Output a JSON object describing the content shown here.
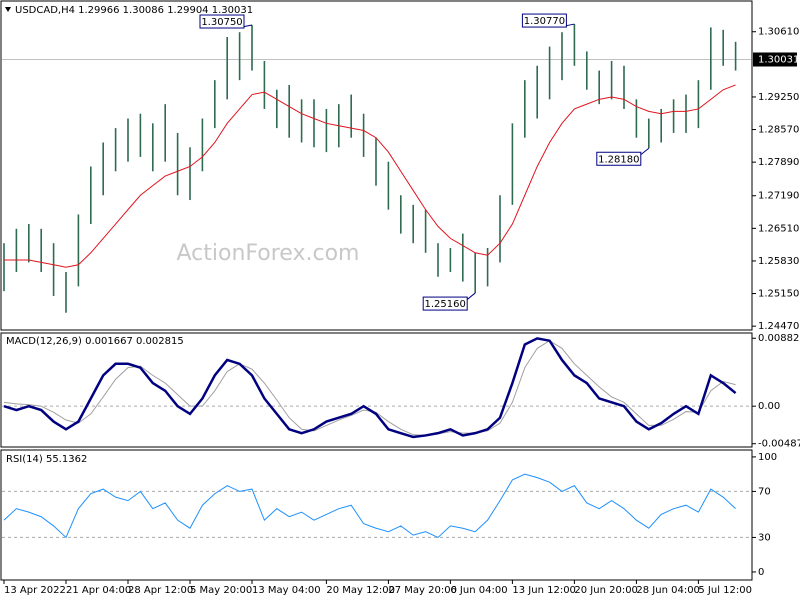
{
  "chart_data": [
    {
      "type": "ohlc",
      "title": "USDCAD,H4 1.29966 1.30086 1.29904 1.30031",
      "watermark": "ActionForex.com",
      "categories": [
        "13 Apr 2022",
        null,
        null,
        null,
        null,
        "21 Apr 04:00",
        null,
        null,
        null,
        null,
        "28 Apr 12:00",
        null,
        null,
        null,
        null,
        "5 May 20:00",
        null,
        null,
        null,
        null,
        "13 May 04:00",
        null,
        null,
        null,
        null,
        null,
        "20 May 12:00",
        null,
        null,
        null,
        null,
        "27 May 20:00",
        null,
        null,
        null,
        null,
        "6 Jun 04:00",
        null,
        null,
        null,
        null,
        "13 Jun 12:00",
        null,
        null,
        null,
        null,
        "20 Jun 20:00",
        null,
        null,
        null,
        null,
        "28 Jun 04:00",
        null,
        null,
        null,
        null,
        "5 Jul 12:00",
        null,
        null,
        null
      ],
      "high": [
        1.262,
        1.265,
        1.266,
        1.265,
        1.262,
        1.256,
        1.268,
        1.278,
        1.283,
        1.286,
        1.288,
        1.289,
        1.287,
        1.291,
        1.285,
        1.282,
        1.288,
        1.296,
        1.305,
        1.306,
        1.3075,
        1.3,
        1.294,
        1.295,
        1.292,
        1.292,
        1.29,
        1.291,
        1.293,
        1.289,
        1.284,
        1.279,
        1.272,
        1.27,
        1.269,
        1.262,
        1.261,
        1.264,
        1.26,
        1.261,
        1.272,
        1.287,
        1.296,
        1.299,
        1.303,
        1.306,
        1.3077,
        1.302,
        1.298,
        1.3,
        1.299,
        1.292,
        1.288,
        1.29,
        1.292,
        1.293,
        1.296,
        1.307,
        1.3065,
        1.304
      ],
      "low": [
        1.252,
        1.256,
        1.258,
        1.256,
        1.251,
        1.2475,
        1.253,
        1.266,
        1.272,
        1.277,
        1.279,
        1.28,
        1.277,
        1.279,
        1.272,
        1.271,
        1.277,
        1.286,
        1.292,
        1.296,
        1.298,
        1.29,
        1.286,
        1.284,
        1.283,
        1.282,
        1.281,
        1.282,
        1.284,
        1.28,
        1.274,
        1.269,
        1.264,
        1.262,
        1.26,
        1.255,
        1.256,
        1.254,
        1.2516,
        1.253,
        1.258,
        1.27,
        1.284,
        1.288,
        1.292,
        1.296,
        1.299,
        1.294,
        1.291,
        1.292,
        1.29,
        1.284,
        1.2818,
        1.283,
        1.285,
        1.285,
        1.286,
        1.294,
        1.299,
        1.298
      ],
      "bar_color": "#2e6b50",
      "ma": [
        1.2585,
        1.2585,
        1.2585,
        1.258,
        1.2575,
        1.257,
        1.2575,
        1.26,
        1.263,
        1.266,
        1.269,
        1.272,
        1.274,
        1.276,
        1.277,
        1.278,
        1.28,
        1.283,
        1.287,
        1.29,
        1.293,
        1.2935,
        1.292,
        1.2905,
        1.289,
        1.288,
        1.287,
        1.2865,
        1.286,
        1.2855,
        1.284,
        1.281,
        1.277,
        1.273,
        1.269,
        1.2655,
        1.263,
        1.2615,
        1.26,
        1.2595,
        1.262,
        1.266,
        1.272,
        1.278,
        1.283,
        1.287,
        1.29,
        1.291,
        1.292,
        1.2925,
        1.292,
        1.2905,
        1.2895,
        1.289,
        1.2895,
        1.2895,
        1.29,
        1.292,
        1.294,
        1.295
      ],
      "ma_color": "#e0141e",
      "annotations": [
        {
          "value": 1.3075,
          "label": "1.30750"
        },
        {
          "value": 1.3077,
          "label": "1.30770"
        },
        {
          "value": 1.2818,
          "label": "1.28180"
        },
        {
          "value": 1.2516,
          "label": "1.25160"
        }
      ],
      "last_price": {
        "value": 1.30031,
        "label": "1.30031"
      },
      "ylim": [
        1.2439,
        1.3123
      ],
      "yticks": [
        {
          "value": 1.3061,
          "label": "1.30610"
        },
        {
          "value": 1.2925,
          "label": "1.29250"
        },
        {
          "value": 1.2857,
          "label": "1.28570"
        },
        {
          "value": 1.2789,
          "label": "1.27890"
        },
        {
          "value": 1.2719,
          "label": "1.27190"
        },
        {
          "value": 1.2651,
          "label": "1.26510"
        },
        {
          "value": 1.2583,
          "label": "1.25830"
        },
        {
          "value": 1.2515,
          "label": "1.25150"
        },
        {
          "value": 1.2447,
          "label": "1.24470"
        }
      ]
    },
    {
      "type": "line",
      "title": "MACD(12,26,9) 0.001667 0.002815",
      "series": [
        {
          "color": "#000080",
          "values": [
            0,
            -0.0005,
            0,
            -0.0005,
            -0.002,
            -0.003,
            -0.002,
            0.001,
            0.004,
            0.0055,
            0.0055,
            0.005,
            0.003,
            0.002,
            0,
            -0.001,
            0.001,
            0.004,
            0.006,
            0.0055,
            0.004,
            0.001,
            -0.001,
            -0.003,
            -0.0035,
            -0.003,
            -0.002,
            -0.0015,
            -0.001,
            0,
            -0.001,
            -0.003,
            -0.0035,
            -0.004,
            -0.0038,
            -0.0035,
            -0.003,
            -0.0038,
            -0.0035,
            -0.003,
            -0.0015,
            0.003,
            0.008,
            0.0088,
            0.0085,
            0.006,
            0.004,
            0.003,
            0.001,
            0.0005,
            0,
            -0.002,
            -0.003,
            -0.0022,
            -0.001,
            0,
            -0.001,
            0.004,
            0.003,
            0.0017
          ]
        },
        {
          "color": "#a0a0a0",
          "values": [
            0.0005,
            0.0003,
            0.0002,
            0,
            -0.0008,
            -0.0018,
            -0.0022,
            -0.001,
            0.0012,
            0.0035,
            0.005,
            0.0052,
            0.004,
            0.003,
            0.0015,
            0,
            0,
            0.002,
            0.0045,
            0.0055,
            0.0048,
            0.003,
            0.0008,
            -0.0015,
            -0.003,
            -0.0032,
            -0.0025,
            -0.0018,
            -0.0012,
            -0.0005,
            -0.0008,
            -0.002,
            -0.003,
            -0.0037,
            -0.0038,
            -0.0036,
            -0.0033,
            -0.0035,
            -0.0035,
            -0.0032,
            -0.0022,
            0.0005,
            0.005,
            0.0075,
            0.0085,
            0.0075,
            0.0055,
            0.004,
            0.0025,
            0.0012,
            0.0005,
            -0.001,
            -0.0025,
            -0.0025,
            -0.0017,
            -0.0007,
            -0.0008,
            0.002,
            0.0032,
            0.0028
          ]
        }
      ],
      "ylim": [
        -0.0053,
        0.0095
      ],
      "yticks": [
        {
          "value": 0.00882,
          "label": "0.00882"
        },
        {
          "value": 0,
          "label": "0.00"
        },
        {
          "value": -0.004872,
          "label": "-0.004872"
        }
      ]
    },
    {
      "type": "line",
      "title": "RSI(14) 55.1362",
      "series": [
        {
          "color": "#1e90ff",
          "values": [
            45,
            55,
            52,
            48,
            40,
            30,
            55,
            68,
            72,
            65,
            62,
            70,
            55,
            60,
            45,
            38,
            58,
            68,
            75,
            70,
            72,
            45,
            55,
            48,
            52,
            45,
            50,
            55,
            58,
            42,
            38,
            35,
            40,
            32,
            35,
            30,
            40,
            38,
            35,
            45,
            62,
            80,
            85,
            82,
            78,
            70,
            75,
            60,
            55,
            62,
            55,
            45,
            38,
            50,
            55,
            58,
            52,
            72,
            65,
            55
          ]
        }
      ],
      "ylim": [
        -7,
        106
      ],
      "yticks": [
        100,
        70,
        30,
        0
      ]
    }
  ]
}
